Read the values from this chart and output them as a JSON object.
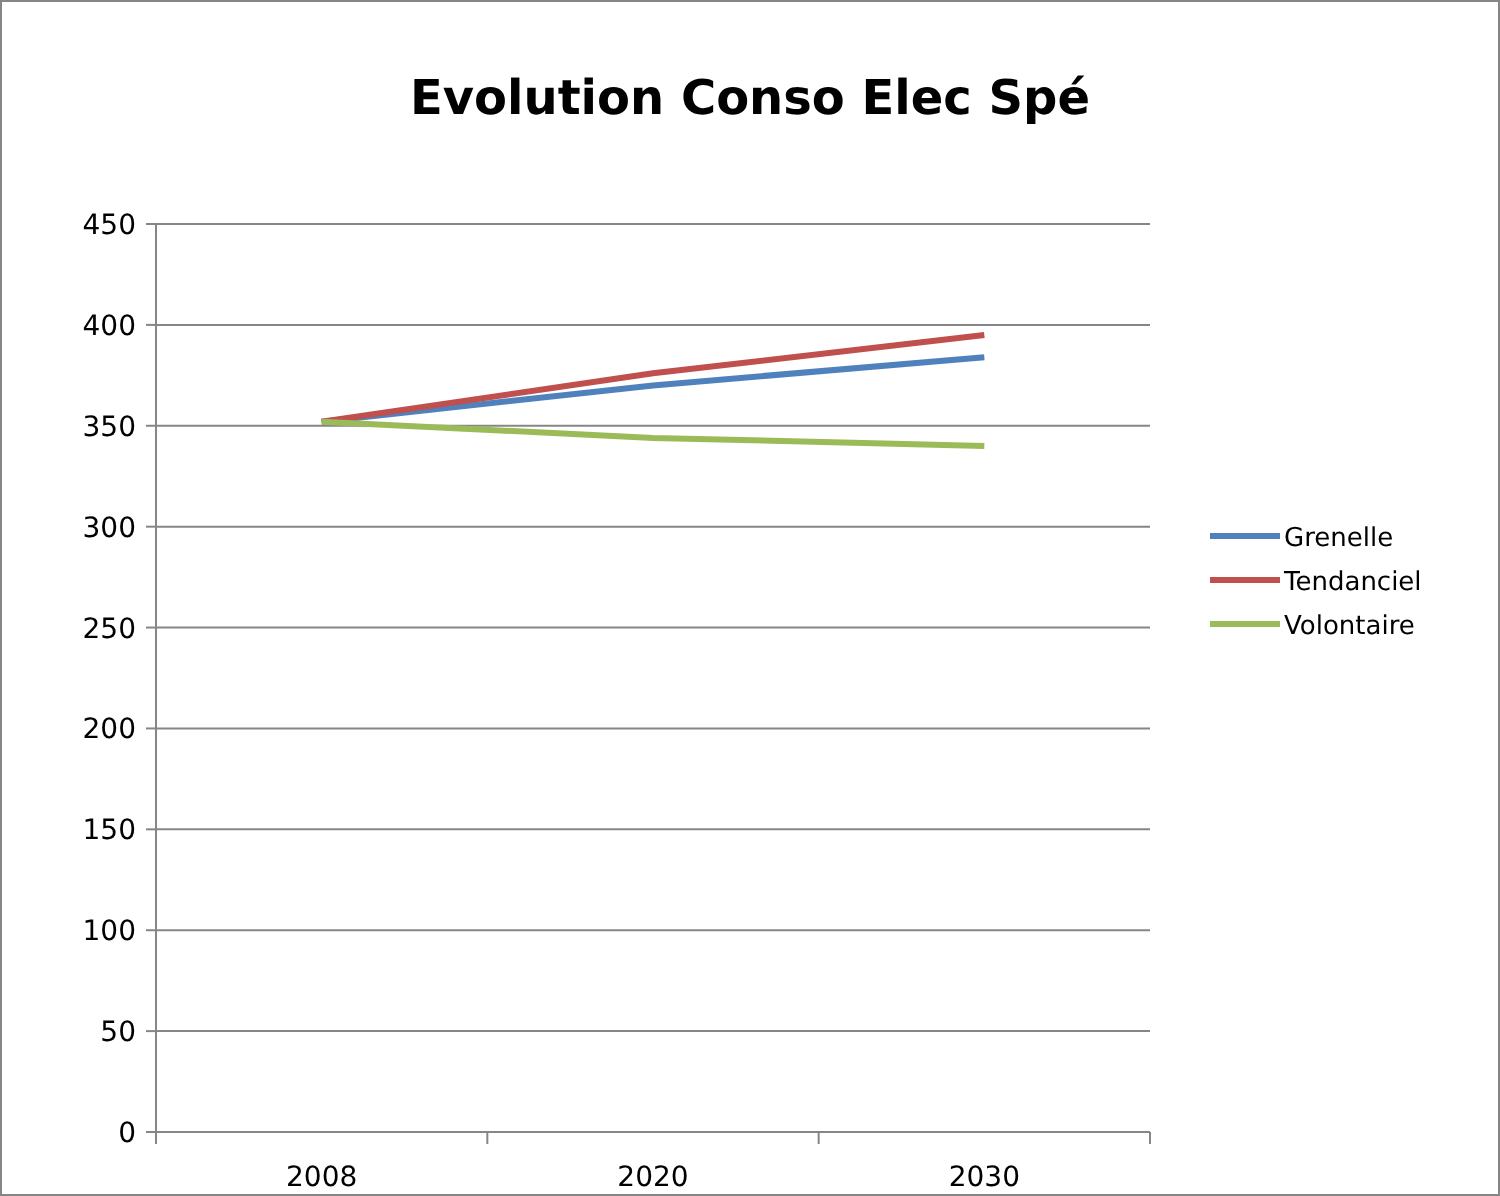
{
  "chart_data": {
    "type": "line",
    "title": "Evolution Conso Elec Spé",
    "categories": [
      "2008",
      "2020",
      "2030"
    ],
    "series": [
      {
        "name": "Grenelle",
        "color": "#4f81bd",
        "values": [
          352,
          370,
          384
        ]
      },
      {
        "name": "Tendanciel",
        "color": "#c0504d",
        "values": [
          352,
          376,
          395
        ]
      },
      {
        "name": "Volontaire",
        "color": "#9bbb59",
        "values": [
          352,
          344,
          340
        ]
      }
    ],
    "ylim": [
      0,
      450
    ],
    "yticks": [
      0,
      50,
      100,
      150,
      200,
      250,
      300,
      350,
      400,
      450
    ],
    "grid": "y",
    "legend": "right",
    "marker": "none",
    "line_style": "solid"
  }
}
